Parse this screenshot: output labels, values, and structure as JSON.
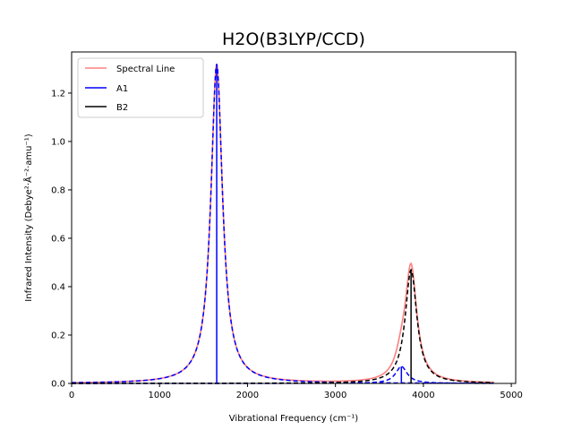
{
  "chart_data": {
    "type": "line",
    "title": "H2O(B3LYP/CCD)",
    "xlabel": "Vibrational Frequency (cm⁻¹)",
    "ylabel": "Infrared Intensity (Debye²·Å⁻²·amu⁻¹)",
    "xlim": [
      0,
      5050
    ],
    "ylim": [
      0,
      1.37
    ],
    "xticks": [
      0,
      1000,
      2000,
      3000,
      4000,
      5000
    ],
    "xtick_labels": [
      "0",
      "1000",
      "2000",
      "3000",
      "4000",
      "5000"
    ],
    "yticks": [
      0.0,
      0.2,
      0.4,
      0.6,
      0.8,
      1.0,
      1.2
    ],
    "ytick_labels": [
      "0.0",
      "0.2",
      "0.4",
      "0.6",
      "0.8",
      "1.0",
      "1.2"
    ],
    "legend_position": "top-left",
    "line_width_cm": 160,
    "x_range": [
      0,
      4800
    ],
    "modes": [
      {
        "name": "A1",
        "frequency": 1650,
        "intensity": 1.32,
        "color": "#0000ff"
      },
      {
        "name": "A1",
        "frequency": 3750,
        "intensity": 0.07,
        "color": "#0000ff"
      },
      {
        "name": "B2",
        "frequency": 3860,
        "intensity": 0.47,
        "color": "#000000"
      }
    ],
    "series": [
      {
        "name": "Spectral Line",
        "color": "#ff8080",
        "style": "solid"
      },
      {
        "name": "A1",
        "color": "#0000ff",
        "style": "solid"
      },
      {
        "name": "B2",
        "color": "#000000",
        "style": "solid"
      }
    ]
  }
}
